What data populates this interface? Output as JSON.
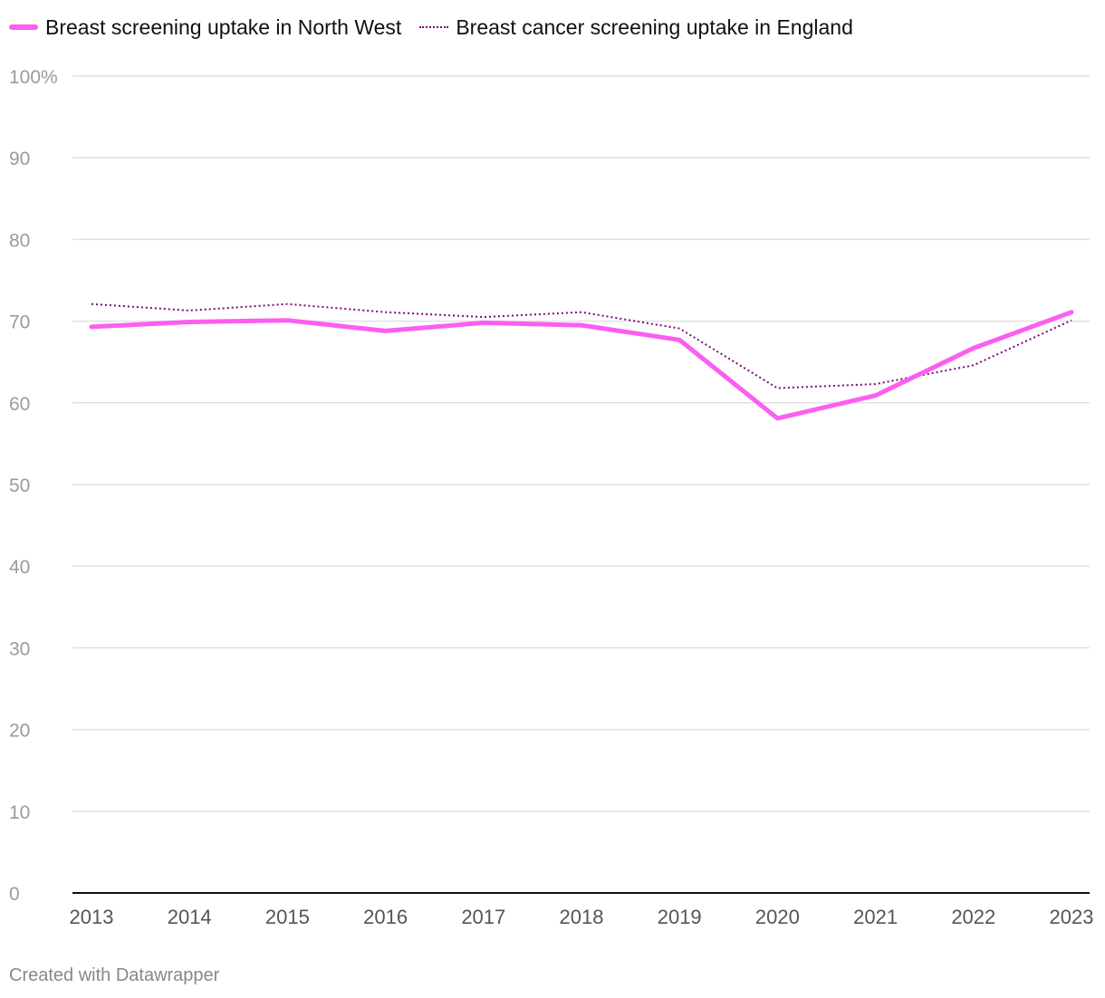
{
  "chart_data": {
    "type": "line",
    "title": "",
    "xlabel": "",
    "ylabel": "",
    "x": [
      2013,
      2014,
      2015,
      2016,
      2017,
      2018,
      2019,
      2020,
      2021,
      2022,
      2023
    ],
    "x_tick_labels": [
      "2013",
      "2014",
      "2015",
      "2016",
      "2017",
      "2018",
      "2019",
      "2020",
      "2021",
      "2022",
      "2023"
    ],
    "y_ticks": [
      0,
      10,
      20,
      30,
      40,
      50,
      60,
      70,
      80,
      90,
      100
    ],
    "y_tick_labels": [
      "0",
      "10",
      "20",
      "30",
      "40",
      "50",
      "60",
      "70",
      "80",
      "90",
      "100%"
    ],
    "ylim": [
      0,
      100
    ],
    "grid": true,
    "legend_position": "top-left",
    "series": [
      {
        "name": "Breast screening uptake in North West",
        "style": "solid",
        "color": "#fb5ef0",
        "values": [
          69.3,
          69.9,
          70.1,
          68.8,
          69.8,
          69.5,
          67.7,
          58.1,
          60.9,
          66.7,
          71.1
        ]
      },
      {
        "name": "Breast cancer screening uptake in England",
        "style": "dotted",
        "color": "#7a0a7a",
        "values": [
          72.1,
          71.3,
          72.1,
          71.1,
          70.5,
          71.1,
          69.1,
          61.8,
          62.3,
          64.6,
          70.1
        ]
      }
    ]
  },
  "credit": "Created with Datawrapper"
}
